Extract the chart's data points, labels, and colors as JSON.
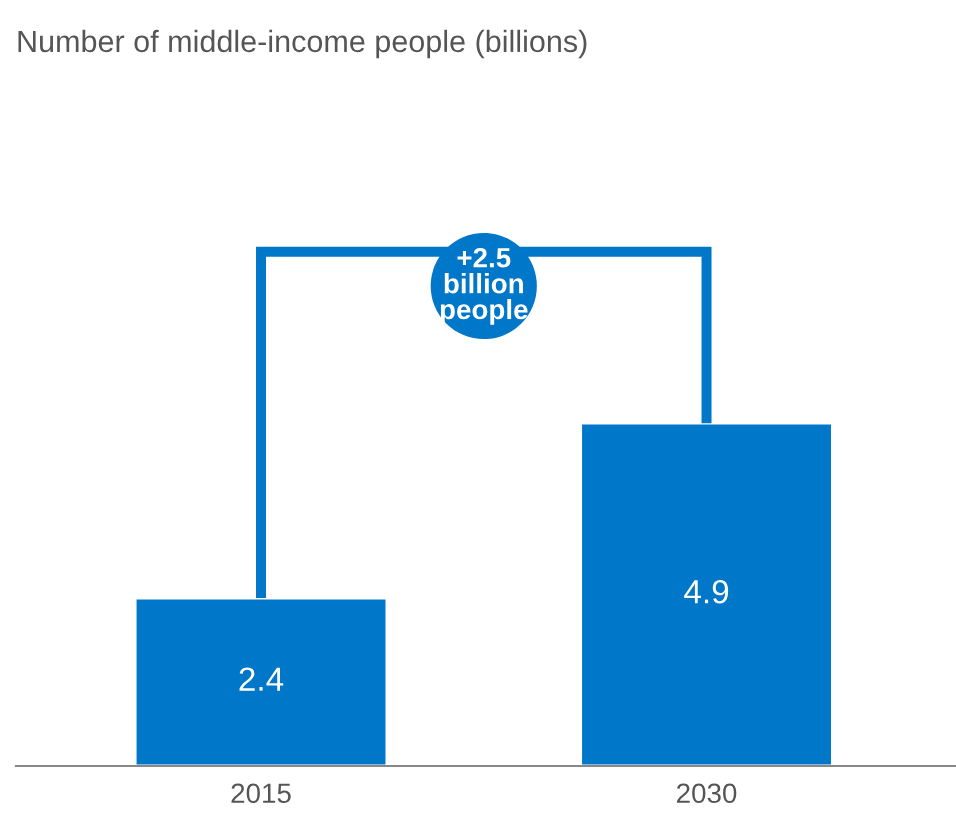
{
  "chart_data": {
    "type": "bar",
    "title": "Number of middle-income people (billions)",
    "categories": [
      "2015",
      "2030"
    ],
    "values": [
      2.4,
      4.9
    ],
    "color": "#0077c8",
    "data_labels": true,
    "grid": false,
    "annotations": [
      "+2.5\nbillion\npeople"
    ]
  }
}
